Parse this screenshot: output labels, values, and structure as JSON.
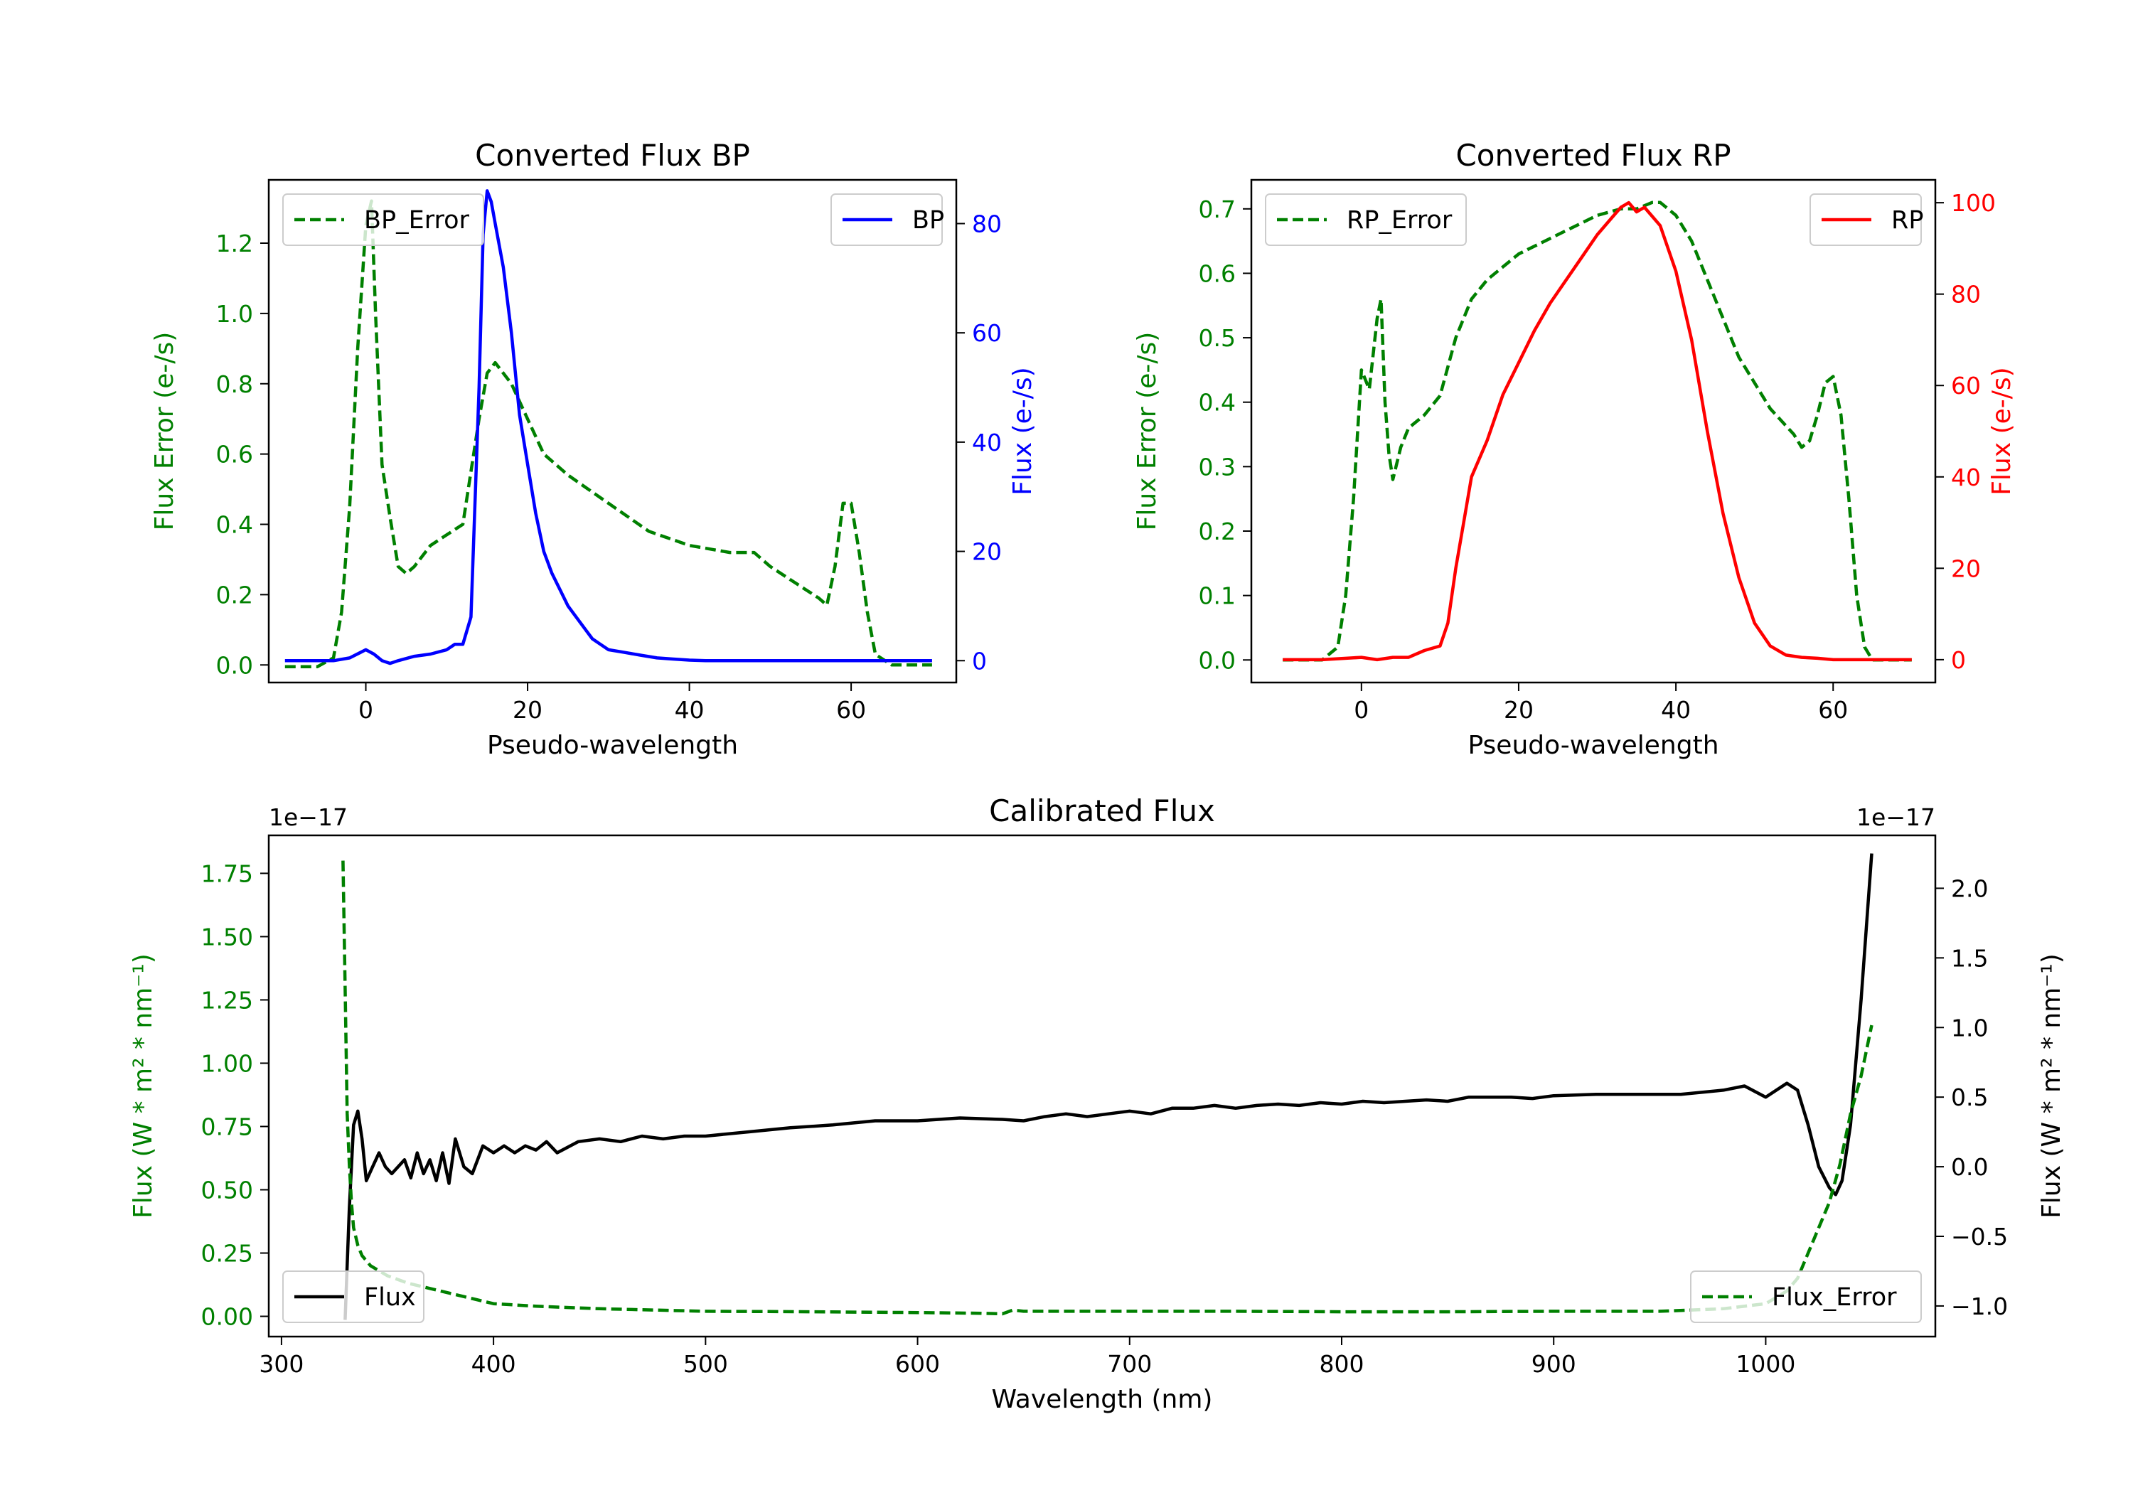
{
  "chart_data": [
    {
      "type": "line",
      "title": "Converted Flux BP",
      "xlabel": "Pseudo-wavelength",
      "xlim": [
        -12,
        73
      ],
      "xticks": [
        0,
        20,
        40,
        60
      ],
      "left_axis": {
        "label": "Flux Error (e-/s)",
        "color": "#008000",
        "ylim": [
          -0.05,
          1.38
        ],
        "ticks": [
          "0.0",
          "0.2",
          "0.4",
          "0.6",
          "0.8",
          "1.0",
          "1.2"
        ]
      },
      "right_axis": {
        "label": "Flux (e-/s)",
        "color": "#0000ff",
        "ylim": [
          -4,
          88
        ],
        "ticks": [
          "0",
          "20",
          "40",
          "60",
          "80"
        ]
      },
      "series": [
        {
          "name": "BP_Error",
          "axis": "left",
          "style": "dashed",
          "color": "#008000",
          "x": [
            -10,
            -6,
            -4,
            -3,
            -2,
            -1,
            0,
            0.7,
            1.2,
            2,
            3,
            4,
            5,
            6,
            8,
            10,
            12,
            14,
            15,
            16,
            18,
            20,
            22,
            25,
            30,
            35,
            40,
            45,
            48,
            50,
            52,
            54,
            56,
            57,
            58,
            59,
            60,
            61,
            62,
            63,
            65,
            68,
            70
          ],
          "y": [
            -0.005,
            -0.005,
            0.02,
            0.15,
            0.45,
            0.9,
            1.25,
            1.32,
            1.0,
            0.57,
            0.42,
            0.28,
            0.26,
            0.28,
            0.34,
            0.37,
            0.4,
            0.7,
            0.83,
            0.86,
            0.8,
            0.7,
            0.6,
            0.54,
            0.46,
            0.38,
            0.34,
            0.32,
            0.32,
            0.28,
            0.25,
            0.22,
            0.19,
            0.17,
            0.28,
            0.46,
            0.46,
            0.32,
            0.15,
            0.03,
            0.0,
            0.0,
            0.0
          ]
        },
        {
          "name": "BP",
          "axis": "right",
          "style": "solid",
          "color": "#0000ff",
          "x": [
            -10,
            -4,
            -2,
            0,
            1,
            2,
            3,
            4,
            6,
            8,
            10,
            11,
            12,
            13,
            14,
            14.5,
            15,
            15.5,
            16,
            17,
            18,
            19,
            20,
            21,
            22,
            23,
            24,
            25,
            26,
            27,
            28,
            29,
            30,
            32,
            34,
            36,
            38,
            40,
            42,
            45,
            50,
            55,
            60,
            65,
            70
          ],
          "y": [
            0,
            0,
            0.5,
            2,
            1.2,
            0,
            -0.5,
            0,
            0.8,
            1.2,
            2,
            3,
            3,
            8,
            50,
            78,
            86,
            84,
            80,
            72,
            60,
            45,
            36,
            27,
            20,
            16,
            13,
            10,
            8,
            6,
            4,
            3,
            2,
            1.5,
            1,
            0.5,
            0.3,
            0.1,
            0,
            0,
            0,
            0,
            0,
            0,
            0
          ]
        }
      ],
      "legend": [
        {
          "label": "BP_Error",
          "position": "upper-left"
        },
        {
          "label": "BP",
          "position": "upper-right"
        }
      ]
    },
    {
      "type": "line",
      "title": "Converted Flux RP",
      "xlabel": "Pseudo-wavelength",
      "xlim": [
        -14,
        73
      ],
      "xticks": [
        0,
        20,
        40,
        60
      ],
      "left_axis": {
        "label": "Flux Error (e-/s)",
        "color": "#008000",
        "ylim": [
          -0.035,
          0.745
        ],
        "ticks": [
          "0.0",
          "0.1",
          "0.2",
          "0.3",
          "0.4",
          "0.5",
          "0.6",
          "0.7"
        ]
      },
      "right_axis": {
        "label": "Flux (e-/s)",
        "color": "#ff0000",
        "ylim": [
          -5,
          105
        ],
        "ticks": [
          "0",
          "20",
          "40",
          "60",
          "80",
          "100"
        ]
      },
      "series": [
        {
          "name": "RP_Error",
          "axis": "left",
          "style": "dashed",
          "color": "#008000",
          "x": [
            -10,
            -5,
            -3,
            -2,
            -1,
            0,
            1,
            2,
            2.5,
            3,
            3.5,
            4,
            5,
            6,
            8,
            10,
            12,
            14,
            16,
            18,
            20,
            25,
            30,
            33,
            35,
            37,
            38,
            40,
            42,
            45,
            48,
            50,
            52,
            55,
            56,
            57,
            58,
            59,
            60,
            61,
            62,
            63,
            64,
            65,
            70
          ],
          "y": [
            0,
            0,
            0.02,
            0.1,
            0.25,
            0.45,
            0.42,
            0.53,
            0.56,
            0.4,
            0.32,
            0.28,
            0.33,
            0.36,
            0.38,
            0.41,
            0.5,
            0.56,
            0.59,
            0.61,
            0.63,
            0.66,
            0.69,
            0.7,
            0.7,
            0.71,
            0.71,
            0.69,
            0.65,
            0.56,
            0.47,
            0.43,
            0.39,
            0.35,
            0.33,
            0.34,
            0.38,
            0.43,
            0.44,
            0.38,
            0.25,
            0.1,
            0.02,
            0,
            0
          ]
        },
        {
          "name": "RP",
          "axis": "right",
          "style": "solid",
          "color": "#ff0000",
          "x": [
            -10,
            -5,
            0,
            2,
            4,
            6,
            8,
            10,
            11,
            12,
            13,
            14,
            16,
            18,
            20,
            22,
            24,
            26,
            28,
            30,
            32,
            33,
            34,
            35,
            36,
            37,
            38,
            40,
            42,
            44,
            46,
            48,
            50,
            52,
            54,
            56,
            58,
            60,
            65,
            70
          ],
          "y": [
            0,
            0,
            0.5,
            0,
            0.5,
            0.5,
            2,
            3,
            8,
            20,
            30,
            40,
            48,
            58,
            65,
            72,
            78,
            83,
            88,
            93,
            97,
            99,
            100,
            98,
            99,
            97,
            95,
            85,
            70,
            50,
            32,
            18,
            8,
            3,
            1,
            0.5,
            0.3,
            0,
            0,
            0
          ]
        }
      ],
      "legend": [
        {
          "label": "RP_Error",
          "position": "upper-left"
        },
        {
          "label": "RP",
          "position": "upper-right"
        }
      ]
    },
    {
      "type": "line",
      "title": "Calibrated Flux",
      "xlabel": "Wavelength (nm)",
      "xlim": [
        294,
        1080
      ],
      "xticks": [
        300,
        400,
        500,
        600,
        700,
        800,
        900,
        1000
      ],
      "left_axis": {
        "label": "Flux (W * m² * nm⁻¹)",
        "color": "#008000",
        "offset_text": "1e−17",
        "ylim": [
          -0.08,
          1.9
        ],
        "ticks": [
          "0.00",
          "0.25",
          "0.50",
          "0.75",
          "1.00",
          "1.25",
          "1.50",
          "1.75"
        ]
      },
      "right_axis": {
        "label": "Flux (W * m² * nm⁻¹)",
        "color": "#000000",
        "offset_text": "1e−17",
        "ylim": [
          -1.22,
          2.38
        ],
        "ticks": [
          "−1.0",
          "−0.5",
          "0.0",
          "0.5",
          "1.0",
          "1.5",
          "2.0"
        ]
      },
      "series": [
        {
          "name": "Flux",
          "axis": "right",
          "style": "solid",
          "color": "#000000",
          "description_points": "oscillating spectrum",
          "x": [
            330,
            332,
            334,
            336,
            338,
            340,
            343,
            346,
            349,
            352,
            355,
            358,
            361,
            364,
            367,
            370,
            373,
            376,
            379,
            382,
            386,
            390,
            395,
            400,
            405,
            410,
            415,
            420,
            425,
            430,
            440,
            450,
            460,
            470,
            480,
            490,
            500,
            520,
            540,
            560,
            580,
            600,
            620,
            640,
            650,
            660,
            670,
            680,
            690,
            700,
            710,
            720,
            730,
            740,
            750,
            760,
            770,
            780,
            790,
            800,
            810,
            820,
            830,
            840,
            850,
            860,
            870,
            880,
            890,
            900,
            920,
            940,
            960,
            980,
            990,
            1000,
            1010,
            1015,
            1020,
            1025,
            1030,
            1033,
            1036,
            1040,
            1045,
            1050
          ],
          "y": [
            -1.1,
            -0.3,
            0.3,
            0.4,
            0.2,
            -0.1,
            0.0,
            0.1,
            0.0,
            -0.05,
            0.0,
            0.05,
            -0.08,
            0.1,
            -0.05,
            0.05,
            -0.1,
            0.1,
            -0.12,
            0.2,
            0.0,
            -0.05,
            0.15,
            0.1,
            0.15,
            0.1,
            0.15,
            0.12,
            0.18,
            0.1,
            0.18,
            0.2,
            0.18,
            0.22,
            0.2,
            0.22,
            0.22,
            0.25,
            0.28,
            0.3,
            0.33,
            0.33,
            0.35,
            0.34,
            0.33,
            0.36,
            0.38,
            0.36,
            0.38,
            0.4,
            0.38,
            0.42,
            0.42,
            0.44,
            0.42,
            0.44,
            0.45,
            0.44,
            0.46,
            0.45,
            0.47,
            0.46,
            0.47,
            0.48,
            0.47,
            0.5,
            0.5,
            0.5,
            0.49,
            0.51,
            0.52,
            0.52,
            0.52,
            0.55,
            0.58,
            0.5,
            0.6,
            0.55,
            0.3,
            0.0,
            -0.15,
            -0.2,
            -0.1,
            0.3,
            1.2,
            2.25
          ]
        },
        {
          "name": "Flux_Error",
          "axis": "left",
          "style": "dashed",
          "color": "#008000",
          "x": [
            329,
            330,
            331,
            332,
            333,
            334,
            336,
            338,
            342,
            346,
            350,
            360,
            370,
            380,
            390,
            400,
            420,
            450,
            500,
            550,
            600,
            630,
            640,
            645,
            650,
            700,
            750,
            800,
            850,
            900,
            950,
            980,
            1000,
            1010,
            1015,
            1020,
            1025,
            1030,
            1035,
            1040,
            1045,
            1050
          ],
          "y": [
            1.8,
            1.3,
            0.8,
            0.6,
            0.45,
            0.35,
            0.28,
            0.24,
            0.2,
            0.18,
            0.16,
            0.13,
            0.11,
            0.09,
            0.07,
            0.05,
            0.04,
            0.03,
            0.02,
            0.018,
            0.015,
            0.012,
            0.01,
            0.025,
            0.02,
            0.02,
            0.02,
            0.018,
            0.018,
            0.02,
            0.02,
            0.03,
            0.05,
            0.1,
            0.15,
            0.25,
            0.35,
            0.45,
            0.6,
            0.8,
            0.95,
            1.15
          ]
        }
      ],
      "legend": [
        {
          "label": "Flux",
          "position": "lower-left"
        },
        {
          "label": "Flux_Error",
          "position": "lower-right"
        }
      ]
    }
  ]
}
